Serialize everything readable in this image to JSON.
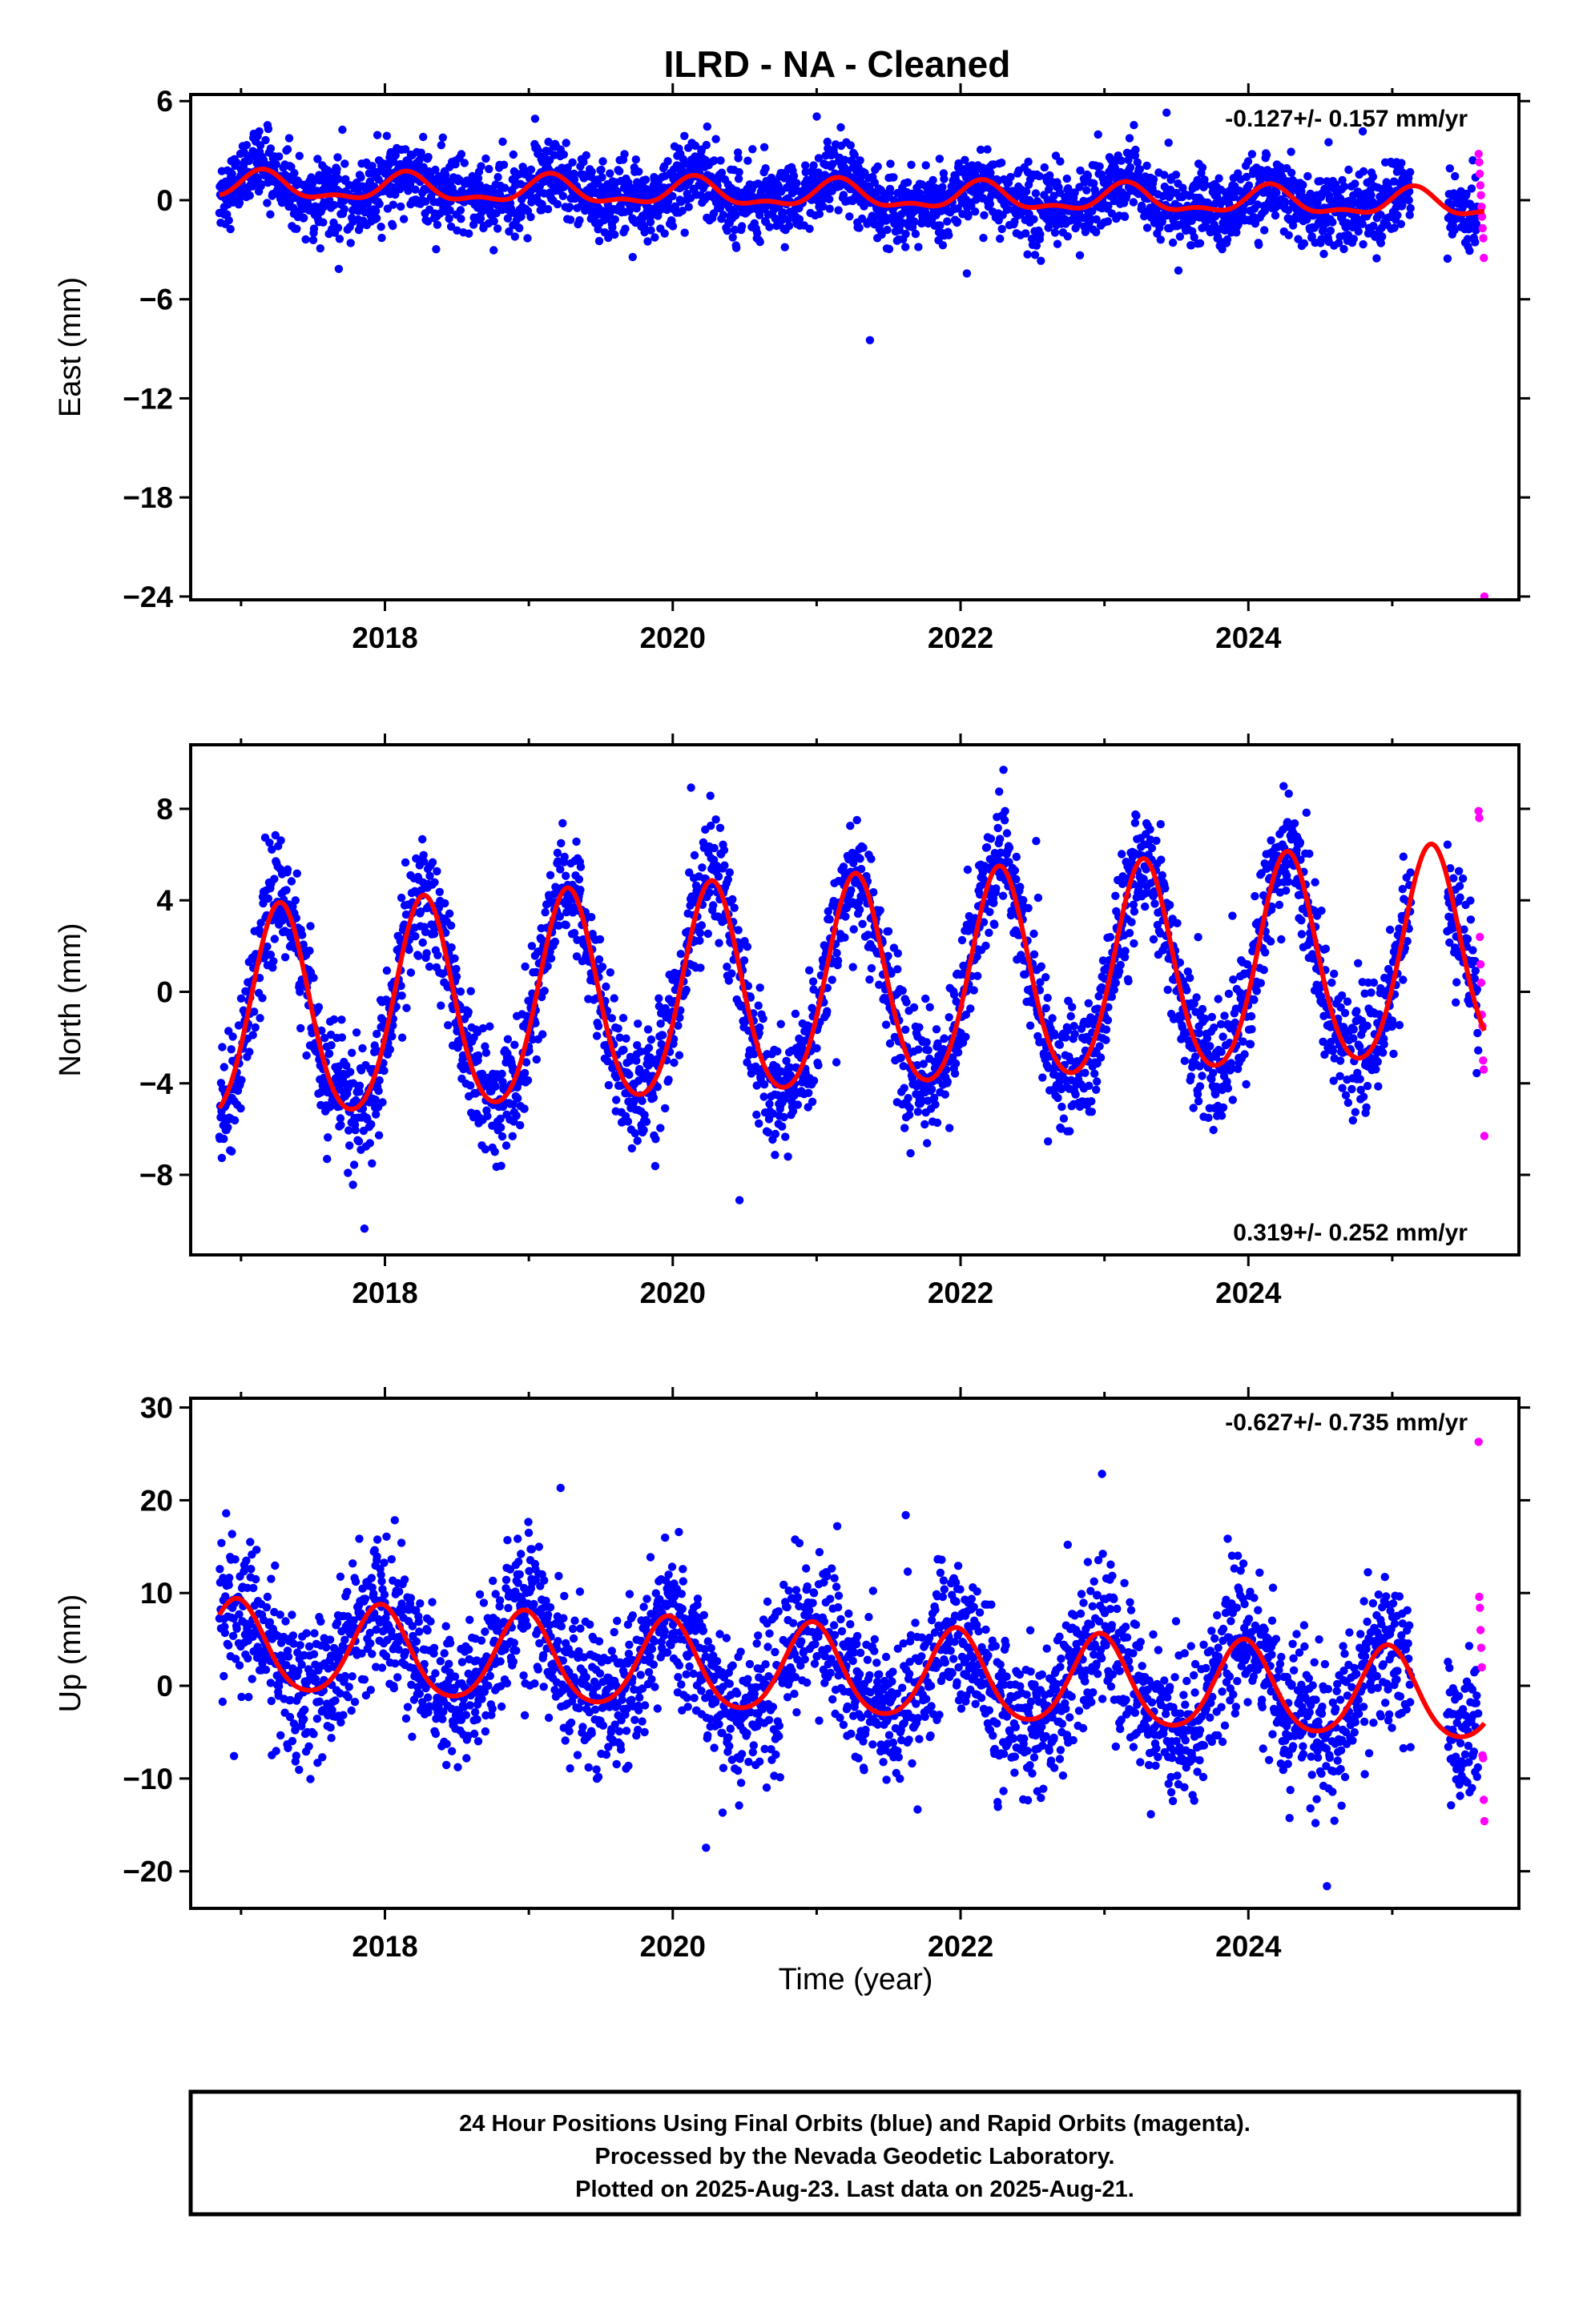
{
  "title": "ILRD  - NA - Cleaned",
  "xlabel": "Time (year)",
  "footer": [
    "24 Hour Positions Using Final Orbits (blue) and Rapid Orbits (magenta).",
    "Processed by the Nevada Geodetic Laboratory.",
    "Plotted on 2025-Aug-23. Last data on 2025-Aug-21."
  ],
  "colors": {
    "final": "#0000ff",
    "rapid": "#ff00ff",
    "model": "#ff0000",
    "axes": "#000000"
  },
  "chart_data": [
    {
      "type": "scatter",
      "component": "east",
      "ylabel": "East (mm)",
      "xlim": [
        2016.65,
        2025.88
      ],
      "ylim": [
        -24.2,
        6.4
      ],
      "xticks": [
        2018,
        2020,
        2022,
        2024
      ],
      "yticks": [
        6,
        0,
        -6,
        -12,
        -18,
        -24
      ],
      "rate_text": "-0.127+/- 0.157 mm/yr",
      "rate_position": "top-right",
      "final_orbits": {
        "x_range": [
          2016.85,
          2025.6
        ],
        "trend_mm_per_yr": -0.127,
        "offset_mm": 0.3,
        "annual_amp_mm": 0.7,
        "annual_phase_yr": 0.15,
        "semiannual_amp_mm": 0.3,
        "scatter_mm": 1.1
      },
      "rapid_orbits": {
        "x_range": [
          2025.6,
          2025.64
        ],
        "values_mm": [
          2.8,
          2.3,
          1.6,
          0.9,
          0.3,
          -0.4,
          -1.0,
          -1.7,
          -2.3,
          -3.5,
          -24.0
        ]
      },
      "model_curve": {
        "trend_mm_per_yr": -0.127,
        "offset_mm": 0.3,
        "annual_amp_mm": 0.75,
        "annual_phase_yr": 0.15,
        "semiannual_amp_mm": 0.35
      }
    },
    {
      "type": "scatter",
      "component": "north",
      "ylabel": "North (mm)",
      "xlim": [
        2016.65,
        2025.88
      ],
      "ylim": [
        -11.5,
        10.8
      ],
      "xticks": [
        2018,
        2020,
        2022,
        2024
      ],
      "yticks": [
        8,
        4,
        0,
        -4,
        -8
      ],
      "rate_text": "0.319+/- 0.252 mm/yr",
      "rate_position": "bottom-right",
      "final_orbits": {
        "x_range": [
          2016.85,
          2025.6
        ],
        "trend_mm_per_yr": 0.319,
        "offset_mm": 0.0,
        "annual_amp_mm": 4.6,
        "annual_phase_yr": 0.27,
        "semiannual_amp_mm": 0.5,
        "scatter_mm": 1.3
      },
      "rapid_orbits": {
        "x_range": [
          2025.6,
          2025.64
        ],
        "values_mm": [
          7.9,
          7.6,
          2.4,
          1.2,
          0.4,
          -1.0,
          -1.5,
          -3.0,
          -3.4,
          -6.3
        ]
      },
      "model_curve": {
        "trend_mm_per_yr": 0.319,
        "offset_mm": 0.0,
        "annual_amp_mm": 4.6,
        "annual_phase_yr": 0.27,
        "semiannual_amp_mm": 0.5
      }
    },
    {
      "type": "scatter",
      "component": "up",
      "ylabel": "Up (mm)",
      "xlim": [
        2016.65,
        2025.88
      ],
      "ylim": [
        -24,
        31
      ],
      "xticks": [
        2018,
        2020,
        2022,
        2024
      ],
      "yticks": [
        30,
        20,
        10,
        0,
        -10,
        -20
      ],
      "rate_text": "-0.627+/- 0.735 mm/yr",
      "rate_position": "top-right",
      "final_orbits": {
        "x_range": [
          2016.85,
          2025.6
        ],
        "trend_mm_per_yr": -0.627,
        "offset_mm": 1.5,
        "annual_amp_mm": 4.8,
        "annual_phase_yr": 0.97,
        "semiannual_amp_mm": 0.6,
        "scatter_mm": 3.9
      },
      "rapid_orbits": {
        "x_range": [
          2025.6,
          2025.64
        ],
        "values_mm": [
          26.3,
          9.6,
          8.4,
          6.0,
          4.1,
          2.0,
          -7.5,
          -7.8,
          -12.3,
          -14.6
        ]
      },
      "model_curve": {
        "trend_mm_per_yr": -0.627,
        "offset_mm": 1.5,
        "annual_amp_mm": 4.8,
        "annual_phase_yr": 0.97,
        "semiannual_amp_mm": 0.6
      }
    }
  ]
}
